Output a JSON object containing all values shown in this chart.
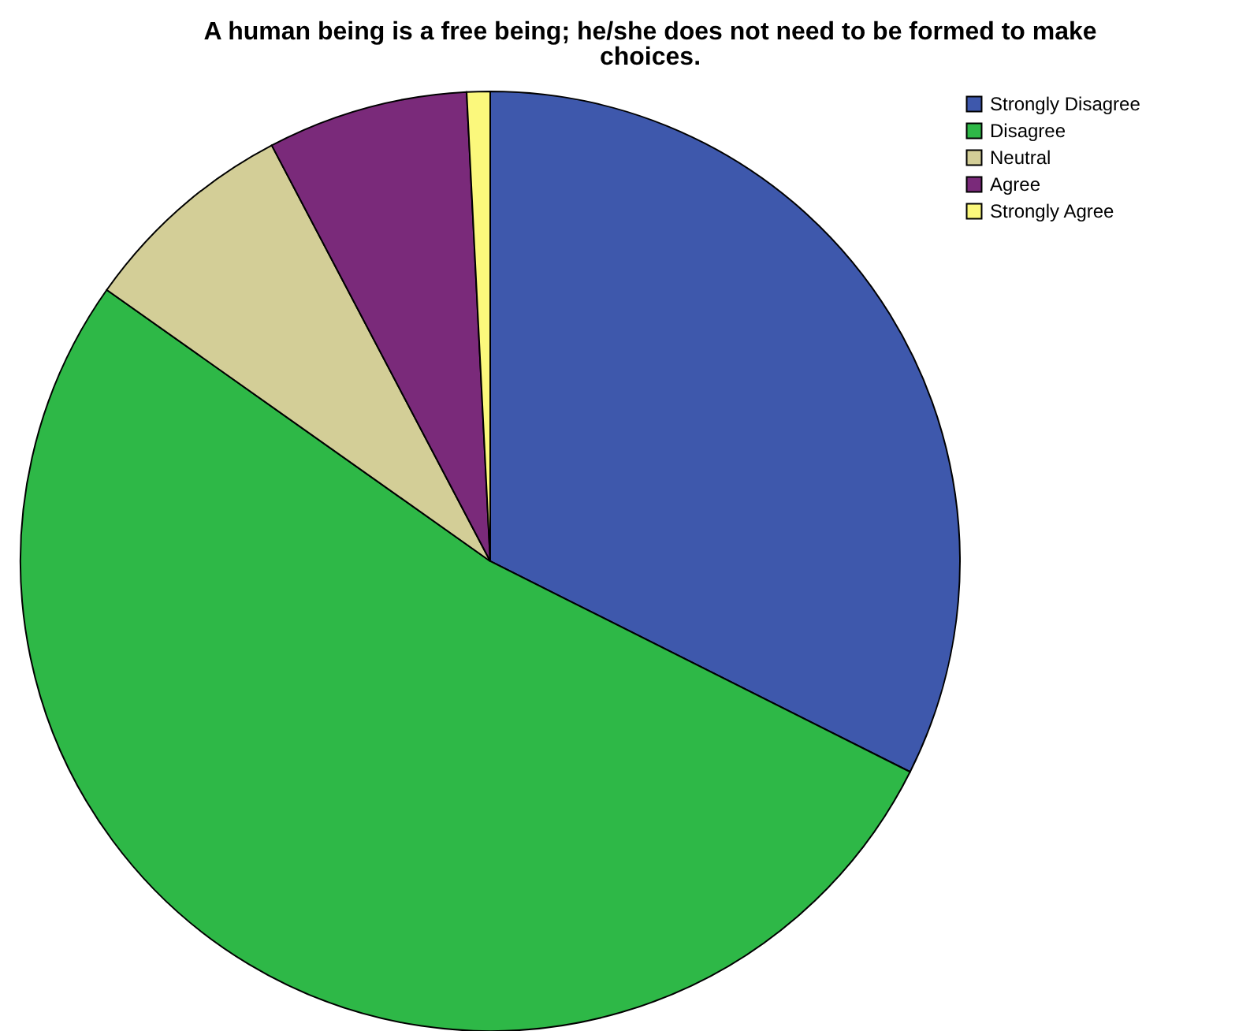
{
  "chart_data": {
    "type": "pie",
    "title": "A human being is a free being; he/she does not need to be formed to make choices.",
    "categories": [
      "Strongly Disagree",
      "Disagree",
      "Neutral",
      "Agree",
      "Strongly Agree"
    ],
    "values": [
      32.4,
      52.4,
      7.5,
      6.9,
      0.8
    ],
    "colors": [
      "#3e58ac",
      "#2eb847",
      "#d3ce97",
      "#7a2a7a",
      "#fbf87c"
    ],
    "legend": "top right"
  }
}
